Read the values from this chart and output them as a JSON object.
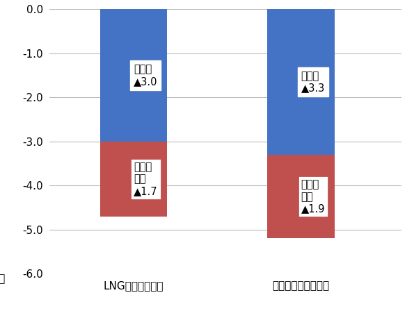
{
  "categories": [
    "LNG補てんケース",
    "再エネ補てんケース"
  ],
  "manufacturing_values": [
    -3.0,
    -3.3
  ],
  "tertiary_values": [
    -1.7,
    -1.9
  ],
  "manufacturing_color": "#4472C4",
  "tertiary_color": "#C0504D",
  "ylim": [
    -6.0,
    0.0
  ],
  "yticks": [
    0.0,
    -1.0,
    -2.0,
    -3.0,
    -4.0,
    -5.0,
    -6.0
  ],
  "ylabel": "兆円",
  "manufacturing_label": "製造業",
  "tertiary_label": "第三次\n産業",
  "mfg_symbol_val": [
    "▲3.0",
    "▲3.3"
  ],
  "tert_symbol_val": [
    "▲1.7",
    "▲1.9"
  ],
  "bar_width": 0.2,
  "background_color": "#ffffff",
  "grid_color": "#bbbbbb",
  "x_positions": [
    0.3,
    0.8
  ],
  "xlim": [
    0.05,
    1.1
  ]
}
